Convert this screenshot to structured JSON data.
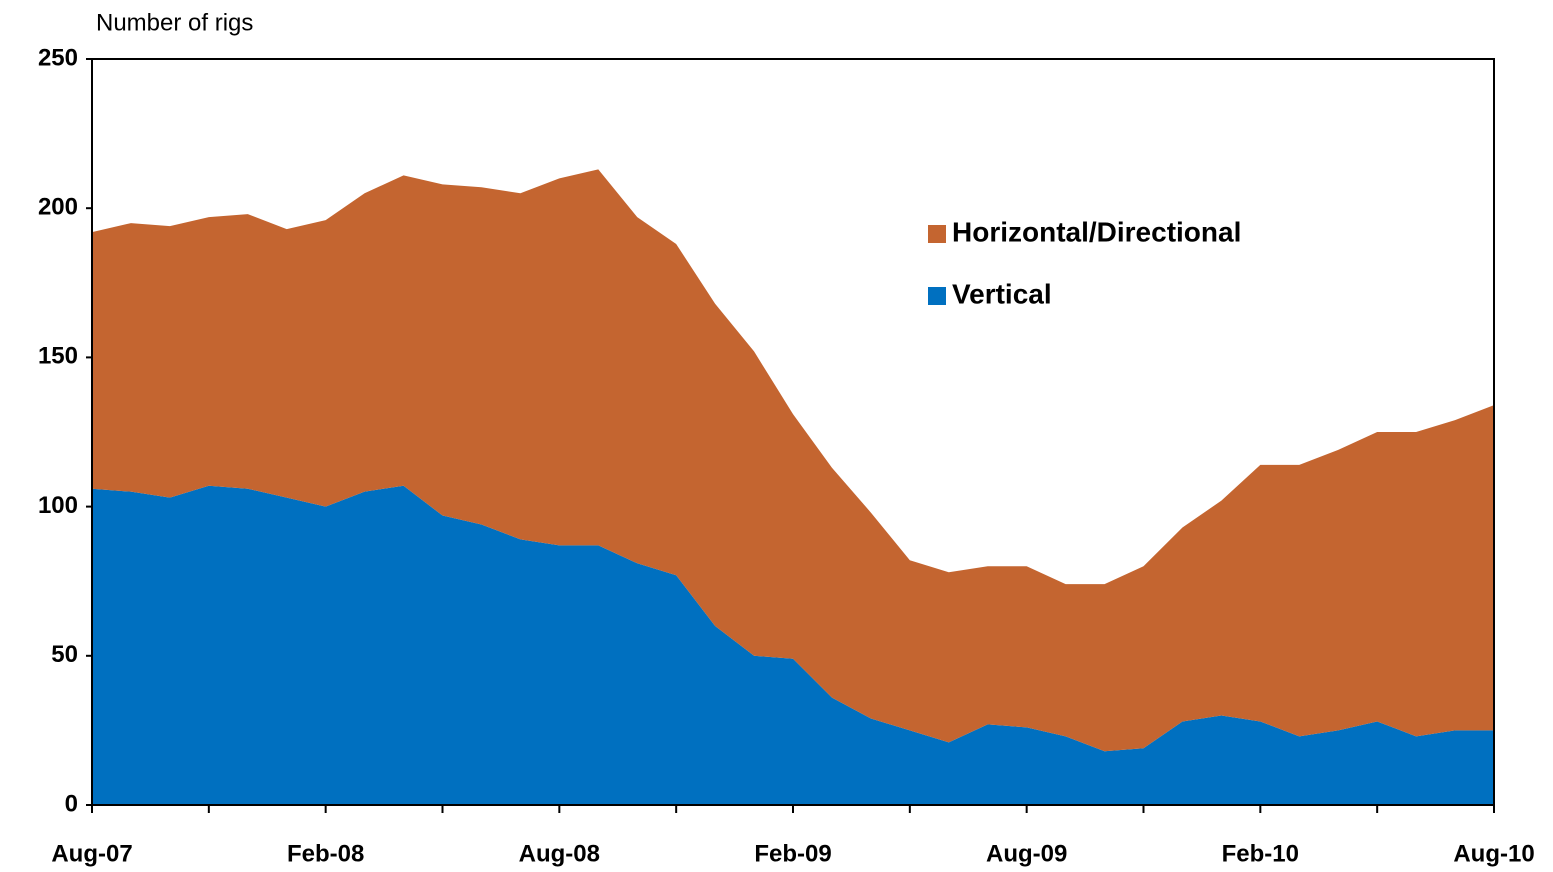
{
  "chart_data": {
    "type": "stacked_area",
    "y_label": "Number of rigs",
    "categories": [
      "Aug-07",
      null,
      null,
      null,
      null,
      null,
      "Feb-08",
      null,
      null,
      null,
      null,
      null,
      "Aug-08",
      null,
      null,
      null,
      null,
      null,
      "Feb-09",
      null,
      null,
      null,
      null,
      null,
      "Aug-09",
      null,
      null,
      null,
      null,
      null,
      "Feb-10",
      null,
      null,
      null,
      null,
      null,
      "Aug-10"
    ],
    "series": [
      {
        "name": "Vertical",
        "color": "#0070c0",
        "values": [
          106,
          105,
          103,
          107,
          106,
          103,
          100,
          105,
          107,
          97,
          94,
          89,
          87,
          87,
          81,
          77,
          60,
          50,
          49,
          36,
          29,
          25,
          21,
          27,
          26,
          23,
          18,
          19,
          28,
          30,
          28,
          23,
          25,
          28,
          23,
          25,
          25
        ]
      },
      {
        "name": "Horizontal/Directional",
        "color": "#c46530",
        "values": [
          86,
          90,
          91,
          90,
          92,
          90,
          96,
          100,
          104,
          111,
          113,
          116,
          123,
          126,
          116,
          111,
          108,
          102,
          82,
          77,
          69,
          57,
          57,
          53,
          54,
          51,
          56,
          61,
          65,
          72,
          86,
          91,
          94,
          97,
          102,
          104,
          109
        ]
      }
    ],
    "ylim": [
      0,
      250
    ],
    "yticks": [
      0,
      50,
      100,
      150,
      200,
      250
    ],
    "legend": "upper-center"
  }
}
